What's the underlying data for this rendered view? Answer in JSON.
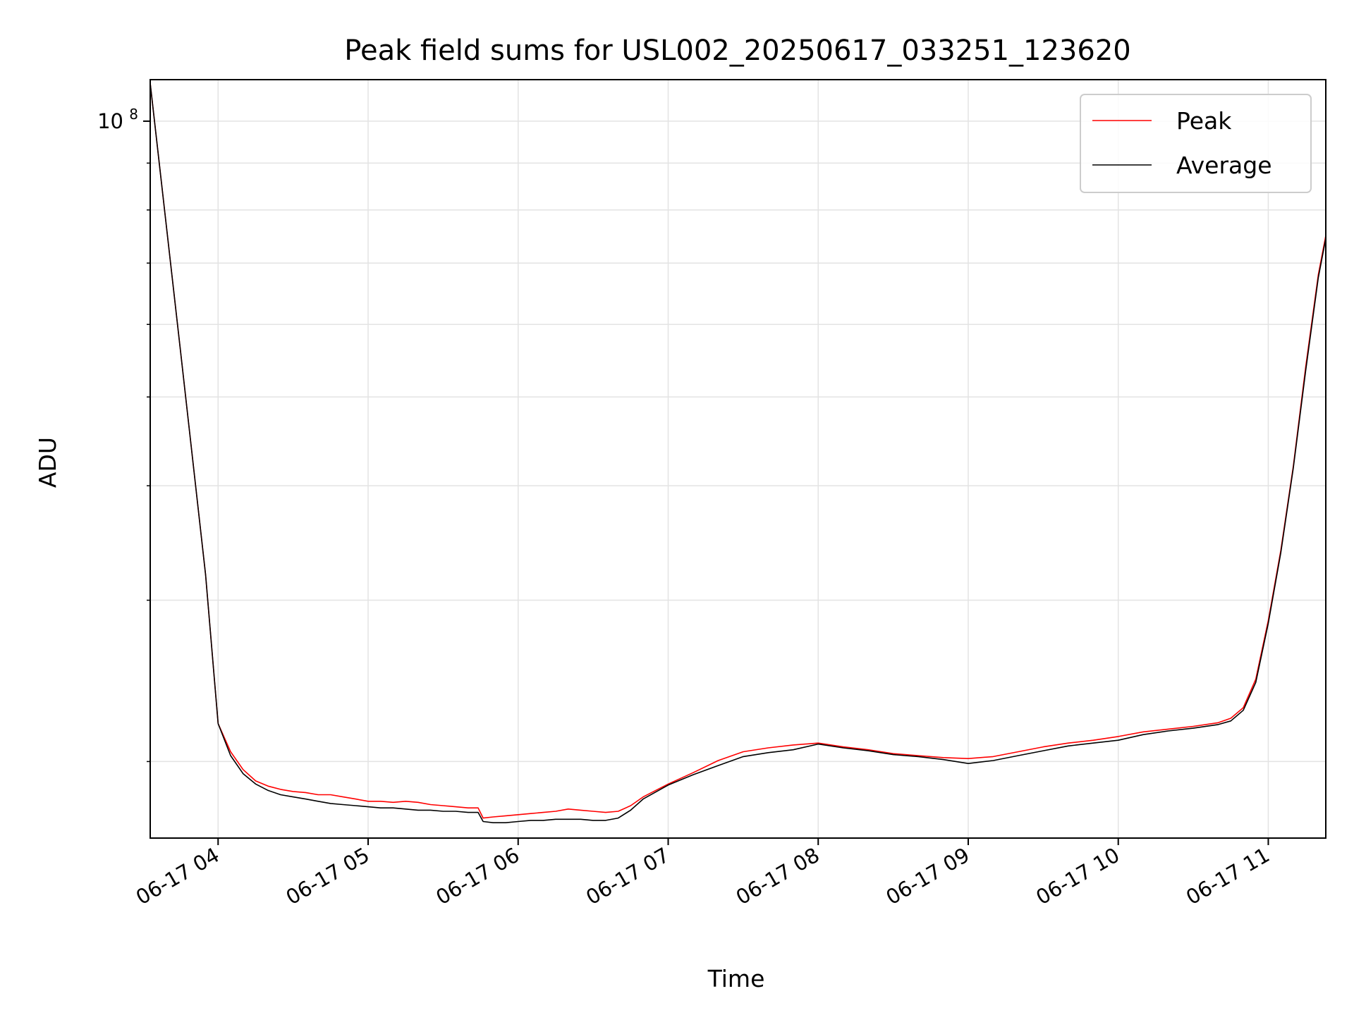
{
  "chart_data": {
    "type": "line",
    "title": "Peak field sums for USL002_20250617_033251_123620",
    "xlabel": "Time",
    "ylabel": "ADU",
    "x_axis_type": "datetime",
    "x_range": [
      "2025-06-17T03:32:51",
      "2025-06-17T11:23:00"
    ],
    "y_scale": "log",
    "ylim": [
      16500000,
      111000000
    ],
    "grid": true,
    "legend_position": "top-right",
    "x_ticks": [
      {
        "t": "2025-06-17T04:00",
        "label": "06-17 04"
      },
      {
        "t": "2025-06-17T05:00",
        "label": "06-17 05"
      },
      {
        "t": "2025-06-17T06:00",
        "label": "06-17 06"
      },
      {
        "t": "2025-06-17T07:00",
        "label": "06-17 07"
      },
      {
        "t": "2025-06-17T08:00",
        "label": "06-17 08"
      },
      {
        "t": "2025-06-17T09:00",
        "label": "06-17 09"
      },
      {
        "t": "2025-06-17T10:00",
        "label": "06-17 10"
      },
      {
        "t": "2025-06-17T11:00",
        "label": "06-17 11"
      }
    ],
    "y_major_ticks": [
      {
        "value": 100000000,
        "label_base": "10",
        "label_exp": "8"
      }
    ],
    "y_minor_ticks": [
      20000000,
      30000000,
      40000000,
      50000000,
      60000000,
      70000000,
      80000000,
      90000000
    ],
    "series": [
      {
        "name": "Peak",
        "color": "#ff0000",
        "x": [
          "2025-06-17T03:32:51",
          "2025-06-17T03:45",
          "2025-06-17T03:55",
          "2025-06-17T04:00",
          "2025-06-17T04:05",
          "2025-06-17T04:10",
          "2025-06-17T04:15",
          "2025-06-17T04:20",
          "2025-06-17T04:25",
          "2025-06-17T04:30",
          "2025-06-17T04:35",
          "2025-06-17T04:40",
          "2025-06-17T04:45",
          "2025-06-17T04:50",
          "2025-06-17T04:55",
          "2025-06-17T05:00",
          "2025-06-17T05:05",
          "2025-06-17T05:10",
          "2025-06-17T05:15",
          "2025-06-17T05:20",
          "2025-06-17T05:25",
          "2025-06-17T05:30",
          "2025-06-17T05:35",
          "2025-06-17T05:40",
          "2025-06-17T05:44",
          "2025-06-17T05:46",
          "2025-06-17T05:50",
          "2025-06-17T05:55",
          "2025-06-17T06:00",
          "2025-06-17T06:05",
          "2025-06-17T06:10",
          "2025-06-17T06:15",
          "2025-06-17T06:20",
          "2025-06-17T06:25",
          "2025-06-17T06:30",
          "2025-06-17T06:35",
          "2025-06-17T06:40",
          "2025-06-17T06:45",
          "2025-06-17T06:50",
          "2025-06-17T07:00",
          "2025-06-17T07:10",
          "2025-06-17T07:20",
          "2025-06-17T07:30",
          "2025-06-17T07:40",
          "2025-06-17T07:50",
          "2025-06-17T08:00",
          "2025-06-17T08:10",
          "2025-06-17T08:20",
          "2025-06-17T08:30",
          "2025-06-17T08:40",
          "2025-06-17T08:50",
          "2025-06-17T09:00",
          "2025-06-17T09:10",
          "2025-06-17T09:20",
          "2025-06-17T09:30",
          "2025-06-17T09:40",
          "2025-06-17T09:50",
          "2025-06-17T10:00",
          "2025-06-17T10:10",
          "2025-06-17T10:20",
          "2025-06-17T10:30",
          "2025-06-17T10:40",
          "2025-06-17T10:45",
          "2025-06-17T10:50",
          "2025-06-17T10:55",
          "2025-06-17T11:00",
          "2025-06-17T11:05",
          "2025-06-17T11:10",
          "2025-06-17T11:15",
          "2025-06-17T11:20",
          "2025-06-17T11:23"
        ],
        "y": [
          110000000,
          56000000,
          32000000,
          22000000,
          20500000,
          19600000,
          19050000,
          18800000,
          18650000,
          18550000,
          18500000,
          18400000,
          18400000,
          18300000,
          18200000,
          18100000,
          18100000,
          18050000,
          18100000,
          18050000,
          17950000,
          17900000,
          17850000,
          17800000,
          17800000,
          17350000,
          17400000,
          17450000,
          17500000,
          17550000,
          17600000,
          17650000,
          17750000,
          17700000,
          17650000,
          17600000,
          17650000,
          17900000,
          18300000,
          18900000,
          19450000,
          20050000,
          20500000,
          20700000,
          20850000,
          20950000,
          20750000,
          20600000,
          20400000,
          20300000,
          20200000,
          20150000,
          20250000,
          20500000,
          20750000,
          20950000,
          21100000,
          21300000,
          21550000,
          21700000,
          21850000,
          22050000,
          22300000,
          22900000,
          24600000,
          28500000,
          34000000,
          42000000,
          54000000,
          68000000,
          75000000
        ]
      },
      {
        "name": "Average",
        "color": "#000000",
        "x": [
          "2025-06-17T03:32:51",
          "2025-06-17T03:45",
          "2025-06-17T03:55",
          "2025-06-17T04:00",
          "2025-06-17T04:05",
          "2025-06-17T04:10",
          "2025-06-17T04:15",
          "2025-06-17T04:20",
          "2025-06-17T04:25",
          "2025-06-17T04:30",
          "2025-06-17T04:35",
          "2025-06-17T04:40",
          "2025-06-17T04:45",
          "2025-06-17T04:50",
          "2025-06-17T04:55",
          "2025-06-17T05:00",
          "2025-06-17T05:05",
          "2025-06-17T05:10",
          "2025-06-17T05:15",
          "2025-06-17T05:20",
          "2025-06-17T05:25",
          "2025-06-17T05:30",
          "2025-06-17T05:35",
          "2025-06-17T05:40",
          "2025-06-17T05:44",
          "2025-06-17T05:46",
          "2025-06-17T05:50",
          "2025-06-17T05:55",
          "2025-06-17T06:00",
          "2025-06-17T06:05",
          "2025-06-17T06:10",
          "2025-06-17T06:15",
          "2025-06-17T06:20",
          "2025-06-17T06:25",
          "2025-06-17T06:30",
          "2025-06-17T06:35",
          "2025-06-17T06:40",
          "2025-06-17T06:45",
          "2025-06-17T06:50",
          "2025-06-17T07:00",
          "2025-06-17T07:10",
          "2025-06-17T07:20",
          "2025-06-17T07:30",
          "2025-06-17T07:40",
          "2025-06-17T07:50",
          "2025-06-17T08:00",
          "2025-06-17T08:10",
          "2025-06-17T08:20",
          "2025-06-17T08:30",
          "2025-06-17T08:40",
          "2025-06-17T08:50",
          "2025-06-17T09:00",
          "2025-06-17T09:10",
          "2025-06-17T09:20",
          "2025-06-17T09:30",
          "2025-06-17T09:40",
          "2025-06-17T09:50",
          "2025-06-17T10:00",
          "2025-06-17T10:10",
          "2025-06-17T10:20",
          "2025-06-17T10:30",
          "2025-06-17T10:40",
          "2025-06-17T10:45",
          "2025-06-17T10:50",
          "2025-06-17T10:55",
          "2025-06-17T11:00",
          "2025-06-17T11:05",
          "2025-06-17T11:10",
          "2025-06-17T11:15",
          "2025-06-17T11:20",
          "2025-06-17T11:23"
        ],
        "y": [
          110000000,
          56000000,
          32000000,
          22000000,
          20300000,
          19400000,
          18900000,
          18600000,
          18400000,
          18300000,
          18200000,
          18100000,
          18000000,
          17950000,
          17900000,
          17850000,
          17800000,
          17800000,
          17750000,
          17700000,
          17700000,
          17650000,
          17650000,
          17600000,
          17600000,
          17200000,
          17150000,
          17150000,
          17200000,
          17250000,
          17250000,
          17300000,
          17300000,
          17300000,
          17250000,
          17250000,
          17350000,
          17700000,
          18200000,
          18850000,
          19350000,
          19800000,
          20250000,
          20450000,
          20600000,
          20900000,
          20700000,
          20550000,
          20350000,
          20250000,
          20100000,
          19900000,
          20050000,
          20300000,
          20550000,
          20800000,
          20950000,
          21100000,
          21400000,
          21600000,
          21750000,
          21950000,
          22150000,
          22750000,
          24400000,
          28300000,
          33800000,
          41800000,
          53500000,
          67500000,
          74500000
        ]
      }
    ]
  }
}
